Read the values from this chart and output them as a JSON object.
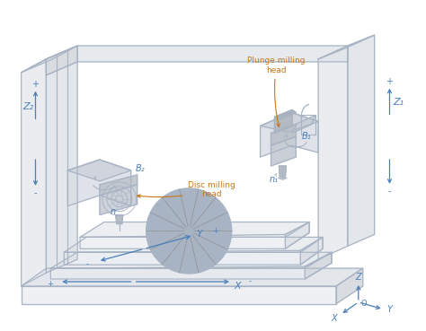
{
  "bg_color": "#ffffff",
  "line_color": "#a8b4c4",
  "arrow_color": "#4a7fba",
  "annotation_color": "#c8761a",
  "label_color": "#4a7fba",
  "labels": {
    "Z1": "Z₁",
    "Z2": "Z₂",
    "B1": "B₁",
    "B2": "B₂",
    "X": "X",
    "Y": "Y",
    "Z": "Z",
    "O": "O",
    "n1": "n₁",
    "n2": "n",
    "plunge": "Plunge milling\nhead",
    "disc": "Disc milling\nhead"
  }
}
